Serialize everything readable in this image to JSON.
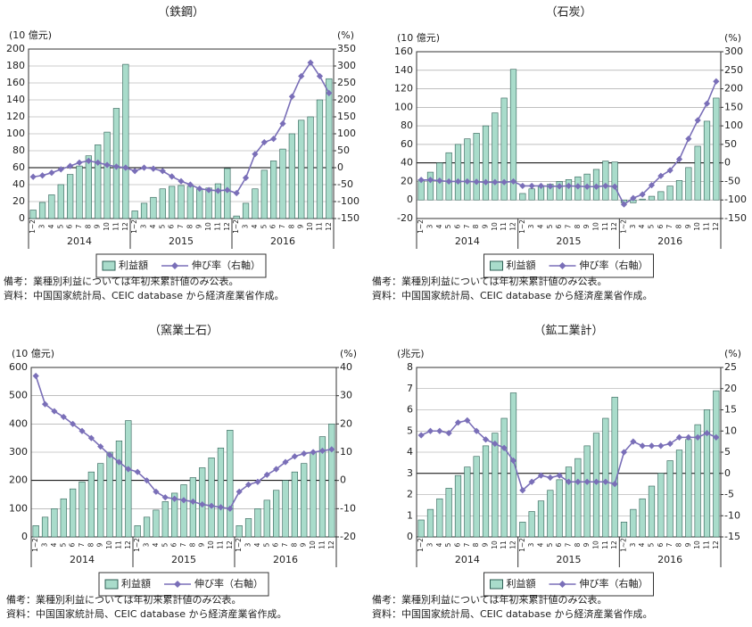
{
  "chart_data": [
    {
      "type": "bar_line",
      "title": "（鉄鋼）",
      "y_unit": "(10 億元)",
      "y2_unit": "(%)",
      "categories": [
        "1~2",
        "3",
        "4",
        "5",
        "6",
        "7",
        "8",
        "9",
        "10",
        "11",
        "12",
        "1~2",
        "3",
        "4",
        "5",
        "6",
        "7",
        "8",
        "9",
        "10",
        "11",
        "12",
        "1~2",
        "3",
        "4",
        "5",
        "6",
        "7",
        "8",
        "9",
        "10",
        "11",
        "12"
      ],
      "years": [
        "2014",
        "2015",
        "2016"
      ],
      "series": [
        {
          "name": "利益額",
          "color": "#a9dccb",
          "values": [
            10,
            19,
            28,
            40,
            52,
            62,
            74,
            87,
            102,
            130,
            182,
            9,
            18,
            25,
            35,
            38,
            39,
            38,
            35,
            36,
            41,
            59,
            3,
            18,
            35,
            57,
            68,
            82,
            100,
            116,
            120,
            140,
            165
          ]
        },
        {
          "name": "伸び率（右軸）",
          "color": "#7a6fb8",
          "axis": "y2",
          "values": [
            -27,
            -23,
            -15,
            -5,
            5,
            15,
            20,
            15,
            8,
            3,
            0,
            -10,
            0,
            -3,
            -10,
            -26,
            -40,
            -50,
            -62,
            -66,
            -68,
            -66,
            -75,
            -30,
            40,
            75,
            85,
            130,
            210,
            270,
            310,
            270,
            220
          ]
        }
      ],
      "ylim": [
        0,
        200
      ],
      "yticks": [
        0,
        20,
        40,
        60,
        80,
        100,
        120,
        140,
        160,
        180,
        200
      ],
      "y2lim": [
        -150,
        350
      ],
      "y2ticks": [
        -150,
        -100,
        -50,
        0,
        50,
        100,
        150,
        200,
        250,
        300,
        350
      ],
      "grid": true,
      "zero_line": true,
      "notes": [
        "備考：業種別利益については年初来累計値のみ公表。",
        "資料：中国国家統計局、CEIC database から経済産業省作成。"
      ]
    },
    {
      "type": "bar_line",
      "title": "（石炭）",
      "y_unit": "(10 億元)",
      "y2_unit": "(%)",
      "categories": [
        "1~2",
        "3",
        "4",
        "5",
        "6",
        "7",
        "8",
        "9",
        "10",
        "11",
        "12",
        "1~2",
        "3",
        "4",
        "5",
        "6",
        "7",
        "8",
        "9",
        "10",
        "11",
        "12",
        "1~2",
        "3",
        "4",
        "5",
        "6",
        "7",
        "8",
        "9",
        "10",
        "11",
        "12"
      ],
      "years": [
        "2014",
        "2015",
        "2016"
      ],
      "series": [
        {
          "name": "利益額",
          "color": "#a9dccb",
          "values": [
            22,
            30,
            40,
            51,
            60,
            66,
            72,
            80,
            94,
            110,
            141,
            7,
            12,
            15,
            17,
            20,
            22,
            25,
            28,
            33,
            42,
            41,
            -3,
            -3,
            1,
            4,
            9,
            15,
            21,
            35,
            58,
            85,
            110
          ]
        },
        {
          "name": "伸び率（右軸）",
          "color": "#7a6fb8",
          "axis": "y2",
          "values": [
            -46,
            -46,
            -48,
            -50,
            -50,
            -50,
            -51,
            -52,
            -52,
            -52,
            -50,
            -62,
            -62,
            -62,
            -63,
            -63,
            -62,
            -63,
            -64,
            -64,
            -62,
            -64,
            -112,
            -95,
            -85,
            -60,
            -35,
            -20,
            10,
            65,
            115,
            160,
            220
          ]
        }
      ],
      "ylim": [
        -20,
        160
      ],
      "yticks": [
        -20,
        0,
        20,
        40,
        60,
        80,
        100,
        120,
        140,
        160
      ],
      "y2lim": [
        -150,
        300
      ],
      "y2ticks": [
        -150,
        -100,
        -50,
        0,
        50,
        100,
        150,
        200,
        250,
        300
      ],
      "grid": true,
      "zero_line": true,
      "notes": [
        "備考：業種別利益については年初来累計値のみ公表。",
        "資料：中国国家統計局、CEIC database から経済産業省作成。"
      ]
    },
    {
      "type": "bar_line",
      "title": "（窯業土石）",
      "y_unit": "(10 億元)",
      "y2_unit": "(%)",
      "categories": [
        "1~2",
        "3",
        "4",
        "5",
        "6",
        "7",
        "8",
        "9",
        "10",
        "11",
        "12",
        "1~2",
        "3",
        "4",
        "5",
        "6",
        "7",
        "8",
        "9",
        "10",
        "11",
        "12",
        "1~2",
        "3",
        "4",
        "5",
        "6",
        "7",
        "8",
        "9",
        "10",
        "11",
        "12"
      ],
      "years": [
        "2014",
        "2015",
        "2016"
      ],
      "series": [
        {
          "name": "利益額",
          "color": "#a9dccb",
          "values": [
            40,
            70,
            100,
            135,
            170,
            195,
            230,
            260,
            300,
            340,
            412,
            40,
            70,
            95,
            125,
            155,
            185,
            210,
            245,
            280,
            315,
            378,
            40,
            65,
            100,
            130,
            165,
            200,
            230,
            260,
            300,
            355,
            400
          ]
        },
        {
          "name": "伸び率（右軸）",
          "color": "#7a6fb8",
          "axis": "y2",
          "values": [
            37,
            27,
            24.5,
            22.5,
            20,
            17.5,
            15,
            12,
            9,
            6.5,
            4,
            3,
            0,
            -4,
            -6,
            -6.5,
            -7,
            -7.5,
            -8.5,
            -9,
            -9.5,
            -10,
            -4,
            -1.5,
            -0.5,
            2,
            4,
            6.5,
            8.5,
            9.5,
            10,
            10.5,
            11
          ]
        }
      ],
      "ylim": [
        0,
        600
      ],
      "yticks": [
        0,
        100,
        200,
        300,
        400,
        500,
        600
      ],
      "y2lim": [
        -20,
        40
      ],
      "y2ticks": [
        -20,
        -10,
        0,
        10,
        20,
        30,
        40
      ],
      "grid": true,
      "zero_line": true,
      "notes": [
        "備考：業種別利益については年初来累計値のみ公表。",
        "資料：中国国家統計局、CEIC database から経済産業省作成。"
      ]
    },
    {
      "type": "bar_line",
      "title": "（鉱工業計）",
      "y_unit": "(兆元)",
      "y2_unit": "(%)",
      "categories": [
        "1~2",
        "3",
        "4",
        "5",
        "6",
        "7",
        "8",
        "9",
        "10",
        "11",
        "12",
        "1~2",
        "3",
        "4",
        "5",
        "6",
        "7",
        "8",
        "9",
        "10",
        "11",
        "12",
        "1~2",
        "3",
        "4",
        "5",
        "6",
        "7",
        "8",
        "9",
        "10",
        "11",
        "12"
      ],
      "years": [
        "2014",
        "2015",
        "2016"
      ],
      "series": [
        {
          "name": "利益額",
          "color": "#a9dccb",
          "values": [
            0.8,
            1.3,
            1.8,
            2.3,
            2.9,
            3.3,
            3.8,
            4.3,
            4.9,
            5.6,
            6.8,
            0.7,
            1.2,
            1.7,
            2.2,
            2.7,
            3.3,
            3.7,
            4.3,
            4.9,
            5.6,
            6.6,
            0.7,
            1.3,
            1.8,
            2.4,
            3.0,
            3.6,
            4.1,
            4.6,
            5.3,
            6.0,
            6.9
          ]
        },
        {
          "name": "伸び率（右軸）",
          "color": "#7a6fb8",
          "axis": "y2",
          "values": [
            9,
            10,
            10,
            9.5,
            12,
            12.5,
            10,
            8,
            7,
            6,
            3,
            -4,
            -2,
            -0.5,
            -1,
            -0.5,
            -2,
            -2,
            -2,
            -2,
            -2,
            -2.5,
            5,
            7.5,
            6.5,
            6.5,
            6.5,
            7,
            8.5,
            8.5,
            8.5,
            9.5,
            8.5
          ]
        }
      ],
      "ylim": [
        0,
        8
      ],
      "yticks": [
        0,
        1,
        2,
        3,
        4,
        5,
        6,
        7,
        8
      ],
      "y2lim": [
        -15,
        25
      ],
      "y2ticks": [
        -15,
        -10,
        -5,
        0,
        5,
        10,
        15,
        20,
        25
      ],
      "grid": true,
      "zero_line": true,
      "notes": [
        "備考：業種別利益については年初来累計値のみ公表。",
        "資料：中国国家統計局、CEIC database から経済産業省作成。"
      ]
    }
  ]
}
